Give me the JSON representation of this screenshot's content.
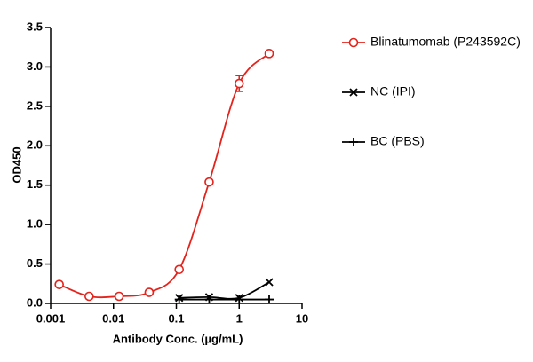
{
  "chart_data": {
    "type": "line",
    "x_label": "Antibody Conc. (µg/mL)",
    "y_label": "OD450",
    "xscale": "log",
    "xlim": [
      0.001,
      10
    ],
    "xticks": [
      0.001,
      0.01,
      0.1,
      1,
      10
    ],
    "ylim": [
      0,
      3.5
    ],
    "yticks": [
      {
        "value": 0,
        "label": "0.0"
      },
      {
        "value": 0.5,
        "label": "0.5"
      },
      {
        "value": 1,
        "label": "1.0"
      },
      {
        "value": 1.5,
        "label": "1.5"
      },
      {
        "value": 2,
        "label": "2.0"
      },
      {
        "value": 2.5,
        "label": "2.5"
      },
      {
        "value": 3,
        "label": "3.0"
      },
      {
        "value": 3.5,
        "label": "3.5"
      }
    ],
    "series": [
      {
        "name": "Blinatumomab (P243592C)",
        "color": "#e3231c",
        "marker": "circle",
        "x": [
          0.00137,
          0.0041,
          0.0123,
          0.037,
          0.111,
          0.333,
          1,
          3
        ],
        "values": [
          0.24,
          0.09,
          0.09,
          0.14,
          0.43,
          1.54,
          2.79,
          3.17
        ],
        "errors": [
          null,
          null,
          null,
          null,
          null,
          null,
          0.1,
          null
        ]
      },
      {
        "name": "NC (IPI)",
        "color": "#000000",
        "marker": "x",
        "x": [
          0.111,
          0.333,
          1,
          3
        ],
        "values": [
          0.07,
          0.08,
          0.07,
          0.27
        ]
      },
      {
        "name": "BC (PBS)",
        "color": "#000000",
        "marker": "plus",
        "x": [
          0.111,
          0.333,
          1,
          3
        ],
        "values": [
          0.05,
          0.05,
          0.05,
          0.05
        ]
      }
    ]
  }
}
